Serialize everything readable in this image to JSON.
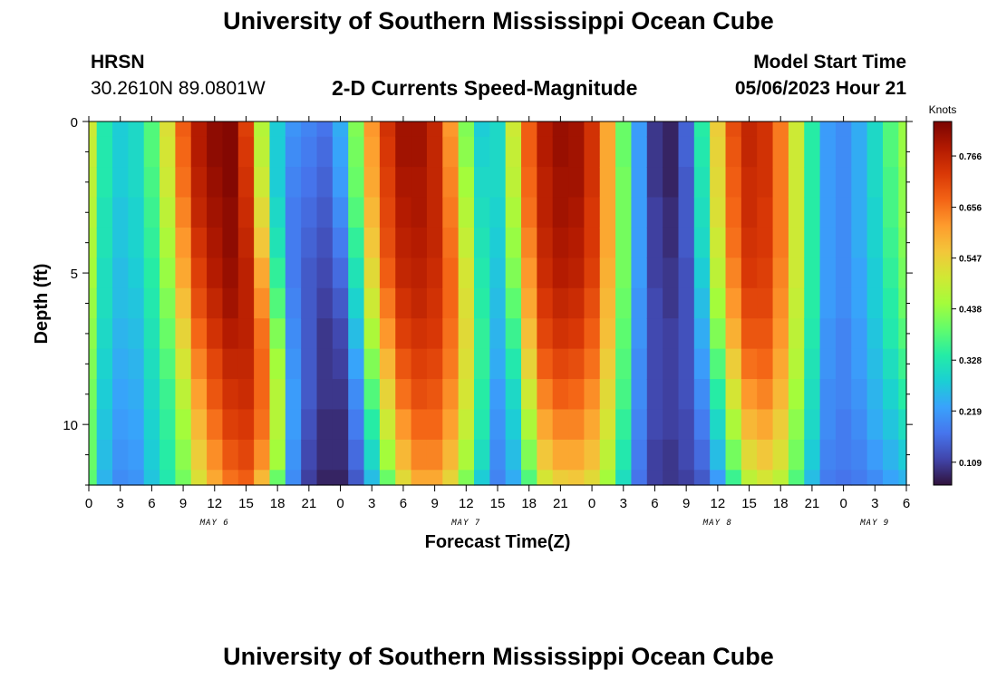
{
  "header": {
    "title": "University of Southern Mississippi Ocean Cube",
    "station": "HRSN",
    "coords": "30.2610N  89.0801W",
    "subtitle": "2-D Currents Speed-Magnitude",
    "model_label": "Model Start Time",
    "model_time": "05/06/2023 Hour 21",
    "footer_title": "University of Southern Mississippi Ocean Cube"
  },
  "chart_data": {
    "type": "heatmap",
    "title": "2-D Currents Speed-Magnitude",
    "xlabel": "Forecast Time(Z)",
    "ylabel": "Depth (ft)",
    "x_tick_labels": [
      "0",
      "3",
      "6",
      "9",
      "12",
      "15",
      "18",
      "21",
      "0",
      "3",
      "6",
      "9",
      "12",
      "15",
      "18",
      "21",
      "0",
      "3",
      "6",
      "9",
      "12",
      "15",
      "18",
      "21",
      "0",
      "3",
      "6"
    ],
    "date_labels": [
      {
        "text": "MAY 6",
        "hour": 12
      },
      {
        "text": "MAY 7",
        "hour": 36
      },
      {
        "text": "MAY 8",
        "hour": 60
      },
      {
        "text": "MAY 9",
        "hour": 75
      }
    ],
    "xlim_hours": [
      0,
      78
    ],
    "y_ticks": [
      0,
      5,
      10
    ],
    "ylim": [
      0,
      12
    ],
    "y_reversed": true,
    "colorbar": {
      "label": "Knots",
      "ticks": [
        0.109,
        0.219,
        0.328,
        0.438,
        0.547,
        0.656,
        0.766
      ],
      "range": [
        0.06,
        0.84
      ],
      "colormap": [
        "#30123b",
        "#4145ab",
        "#4675ed",
        "#39a2fc",
        "#1bcfd4",
        "#24eca6",
        "#61fc6c",
        "#a4fc3b",
        "#d1e834",
        "#f3c63a",
        "#fe9b2d",
        "#f36315",
        "#d93806",
        "#b11901",
        "#7a0402"
      ]
    },
    "time_columns_hours": [
      0,
      1.5,
      3,
      4.5,
      6,
      7.5,
      9,
      10.5,
      12,
      13.5,
      15,
      16.5,
      18,
      19.5,
      21,
      22.5,
      24,
      25.5,
      27,
      28.5,
      30,
      31.5,
      33,
      34.5,
      36,
      37.5,
      39,
      40.5,
      42,
      43.5,
      45,
      46.5,
      48,
      49.5,
      51,
      52.5,
      54,
      55.5,
      57,
      58.5,
      60,
      61.5,
      63,
      64.5,
      66,
      67.5,
      69,
      70.5,
      72,
      73.5,
      75,
      76.5,
      78
    ],
    "depth_rows_ft": [
      0,
      1,
      2,
      3,
      4,
      5,
      6,
      7,
      8,
      9,
      10,
      11,
      12
    ],
    "speed_kt": [
      [
        0.5,
        0.49,
        0.48,
        0.47,
        0.46,
        0.45,
        0.44,
        0.43,
        0.42,
        0.41,
        0.4,
        0.4,
        0.39
      ],
      [
        0.33,
        0.33,
        0.33,
        0.32,
        0.32,
        0.31,
        0.31,
        0.3,
        0.29,
        0.28,
        0.27,
        0.26,
        0.25
      ],
      [
        0.28,
        0.28,
        0.28,
        0.27,
        0.27,
        0.26,
        0.26,
        0.25,
        0.24,
        0.23,
        0.22,
        0.21,
        0.2
      ],
      [
        0.3,
        0.3,
        0.3,
        0.29,
        0.29,
        0.28,
        0.27,
        0.26,
        0.25,
        0.24,
        0.23,
        0.22,
        0.21
      ],
      [
        0.38,
        0.38,
        0.37,
        0.36,
        0.35,
        0.34,
        0.33,
        0.32,
        0.31,
        0.3,
        0.29,
        0.28,
        0.27
      ],
      [
        0.52,
        0.51,
        0.5,
        0.48,
        0.46,
        0.44,
        0.42,
        0.4,
        0.38,
        0.36,
        0.35,
        0.34,
        0.33
      ],
      [
        0.68,
        0.67,
        0.66,
        0.64,
        0.62,
        0.6,
        0.57,
        0.54,
        0.51,
        0.48,
        0.45,
        0.43,
        0.41
      ],
      [
        0.78,
        0.78,
        0.77,
        0.76,
        0.74,
        0.72,
        0.7,
        0.67,
        0.64,
        0.61,
        0.58,
        0.55,
        0.52
      ],
      [
        0.82,
        0.82,
        0.81,
        0.8,
        0.79,
        0.78,
        0.76,
        0.74,
        0.71,
        0.69,
        0.66,
        0.63,
        0.6
      ],
      [
        0.83,
        0.83,
        0.83,
        0.82,
        0.82,
        0.81,
        0.8,
        0.78,
        0.76,
        0.74,
        0.72,
        0.69,
        0.66
      ],
      [
        0.72,
        0.73,
        0.74,
        0.75,
        0.76,
        0.77,
        0.77,
        0.77,
        0.76,
        0.75,
        0.73,
        0.71,
        0.68
      ],
      [
        0.47,
        0.48,
        0.5,
        0.53,
        0.56,
        0.6,
        0.63,
        0.66,
        0.67,
        0.67,
        0.66,
        0.63,
        0.58
      ],
      [
        0.28,
        0.28,
        0.28,
        0.3,
        0.32,
        0.35,
        0.38,
        0.42,
        0.45,
        0.47,
        0.47,
        0.45,
        0.4
      ],
      [
        0.21,
        0.2,
        0.19,
        0.18,
        0.18,
        0.18,
        0.19,
        0.2,
        0.21,
        0.22,
        0.22,
        0.21,
        0.2
      ],
      [
        0.19,
        0.18,
        0.17,
        0.16,
        0.15,
        0.14,
        0.14,
        0.14,
        0.14,
        0.14,
        0.13,
        0.12,
        0.11
      ],
      [
        0.17,
        0.16,
        0.15,
        0.14,
        0.13,
        0.12,
        0.11,
        0.1,
        0.1,
        0.1,
        0.09,
        0.09,
        0.08
      ],
      [
        0.24,
        0.23,
        0.22,
        0.2,
        0.18,
        0.16,
        0.14,
        0.12,
        0.11,
        0.1,
        0.09,
        0.09,
        0.08
      ],
      [
        0.42,
        0.41,
        0.4,
        0.38,
        0.35,
        0.32,
        0.29,
        0.26,
        0.23,
        0.2,
        0.18,
        0.16,
        0.14
      ],
      [
        0.62,
        0.61,
        0.6,
        0.58,
        0.56,
        0.53,
        0.5,
        0.46,
        0.42,
        0.38,
        0.34,
        0.3,
        0.26
      ],
      [
        0.74,
        0.73,
        0.72,
        0.71,
        0.7,
        0.68,
        0.65,
        0.62,
        0.58,
        0.54,
        0.5,
        0.45,
        0.4
      ],
      [
        0.8,
        0.8,
        0.79,
        0.78,
        0.77,
        0.76,
        0.74,
        0.72,
        0.69,
        0.66,
        0.62,
        0.58,
        0.53
      ],
      [
        0.8,
        0.8,
        0.79,
        0.79,
        0.78,
        0.77,
        0.76,
        0.74,
        0.72,
        0.7,
        0.67,
        0.64,
        0.6
      ],
      [
        0.76,
        0.76,
        0.76,
        0.76,
        0.76,
        0.75,
        0.74,
        0.73,
        0.71,
        0.69,
        0.67,
        0.64,
        0.6
      ],
      [
        0.62,
        0.63,
        0.64,
        0.65,
        0.66,
        0.67,
        0.67,
        0.66,
        0.65,
        0.63,
        0.61,
        0.58,
        0.54
      ],
      [
        0.42,
        0.43,
        0.45,
        0.47,
        0.49,
        0.51,
        0.52,
        0.53,
        0.52,
        0.51,
        0.49,
        0.46,
        0.42
      ],
      [
        0.28,
        0.29,
        0.3,
        0.31,
        0.32,
        0.33,
        0.34,
        0.35,
        0.35,
        0.34,
        0.33,
        0.31,
        0.28
      ],
      [
        0.3,
        0.3,
        0.3,
        0.29,
        0.28,
        0.27,
        0.26,
        0.25,
        0.24,
        0.22,
        0.21,
        0.2,
        0.19
      ],
      [
        0.5,
        0.49,
        0.48,
        0.46,
        0.44,
        0.42,
        0.39,
        0.36,
        0.33,
        0.3,
        0.28,
        0.26,
        0.24
      ],
      [
        0.68,
        0.68,
        0.67,
        0.66,
        0.64,
        0.62,
        0.6,
        0.57,
        0.54,
        0.5,
        0.46,
        0.42,
        0.38
      ],
      [
        0.78,
        0.78,
        0.77,
        0.77,
        0.76,
        0.75,
        0.73,
        0.71,
        0.68,
        0.64,
        0.6,
        0.56,
        0.51
      ],
      [
        0.81,
        0.81,
        0.8,
        0.8,
        0.79,
        0.78,
        0.76,
        0.74,
        0.71,
        0.68,
        0.64,
        0.6,
        0.55
      ],
      [
        0.8,
        0.8,
        0.8,
        0.79,
        0.78,
        0.77,
        0.75,
        0.73,
        0.7,
        0.67,
        0.64,
        0.6,
        0.56
      ],
      [
        0.74,
        0.74,
        0.74,
        0.73,
        0.73,
        0.72,
        0.7,
        0.68,
        0.66,
        0.63,
        0.6,
        0.57,
        0.53
      ],
      [
        0.6,
        0.6,
        0.6,
        0.6,
        0.6,
        0.59,
        0.58,
        0.57,
        0.55,
        0.53,
        0.51,
        0.48,
        0.45
      ],
      [
        0.4,
        0.4,
        0.41,
        0.41,
        0.41,
        0.41,
        0.4,
        0.39,
        0.38,
        0.37,
        0.35,
        0.33,
        0.31
      ],
      [
        0.22,
        0.22,
        0.22,
        0.22,
        0.22,
        0.22,
        0.21,
        0.21,
        0.2,
        0.2,
        0.19,
        0.18,
        0.17
      ],
      [
        0.1,
        0.1,
        0.1,
        0.11,
        0.11,
        0.11,
        0.12,
        0.12,
        0.12,
        0.12,
        0.12,
        0.11,
        0.11
      ],
      [
        0.08,
        0.08,
        0.08,
        0.09,
        0.09,
        0.1,
        0.1,
        0.11,
        0.11,
        0.11,
        0.11,
        0.1,
        0.1
      ],
      [
        0.15,
        0.15,
        0.14,
        0.14,
        0.14,
        0.13,
        0.13,
        0.13,
        0.13,
        0.13,
        0.12,
        0.12,
        0.11
      ],
      [
        0.34,
        0.33,
        0.32,
        0.31,
        0.3,
        0.28,
        0.26,
        0.24,
        0.22,
        0.2,
        0.18,
        0.16,
        0.14
      ],
      [
        0.55,
        0.54,
        0.53,
        0.52,
        0.5,
        0.48,
        0.45,
        0.42,
        0.38,
        0.34,
        0.3,
        0.26,
        0.22
      ],
      [
        0.7,
        0.69,
        0.68,
        0.67,
        0.66,
        0.64,
        0.62,
        0.59,
        0.55,
        0.51,
        0.46,
        0.41,
        0.36
      ],
      [
        0.76,
        0.76,
        0.75,
        0.75,
        0.74,
        0.73,
        0.71,
        0.69,
        0.66,
        0.62,
        0.58,
        0.53,
        0.48
      ],
      [
        0.74,
        0.74,
        0.74,
        0.73,
        0.73,
        0.72,
        0.71,
        0.69,
        0.67,
        0.64,
        0.6,
        0.56,
        0.51
      ],
      [
        0.65,
        0.65,
        0.65,
        0.65,
        0.65,
        0.64,
        0.63,
        0.62,
        0.6,
        0.58,
        0.55,
        0.52,
        0.48
      ],
      [
        0.5,
        0.5,
        0.5,
        0.5,
        0.5,
        0.5,
        0.49,
        0.48,
        0.47,
        0.45,
        0.43,
        0.41,
        0.38
      ],
      [
        0.34,
        0.34,
        0.34,
        0.34,
        0.34,
        0.34,
        0.34,
        0.33,
        0.32,
        0.31,
        0.3,
        0.28,
        0.26
      ],
      [
        0.22,
        0.22,
        0.22,
        0.22,
        0.22,
        0.22,
        0.22,
        0.21,
        0.21,
        0.2,
        0.2,
        0.19,
        0.18
      ],
      [
        0.2,
        0.2,
        0.2,
        0.2,
        0.2,
        0.2,
        0.2,
        0.19,
        0.19,
        0.19,
        0.18,
        0.18,
        0.17
      ],
      [
        0.24,
        0.24,
        0.24,
        0.24,
        0.24,
        0.23,
        0.23,
        0.22,
        0.22,
        0.21,
        0.2,
        0.19,
        0.18
      ],
      [
        0.3,
        0.3,
        0.3,
        0.29,
        0.29,
        0.28,
        0.28,
        0.27,
        0.26,
        0.25,
        0.24,
        0.22,
        0.2
      ],
      [
        0.38,
        0.38,
        0.37,
        0.37,
        0.36,
        0.35,
        0.34,
        0.33,
        0.31,
        0.29,
        0.27,
        0.25,
        0.23
      ],
      [
        0.44,
        0.44,
        0.43,
        0.43,
        0.42,
        0.41,
        0.4,
        0.38,
        0.36,
        0.34,
        0.31,
        0.28,
        0.25
      ]
    ]
  }
}
